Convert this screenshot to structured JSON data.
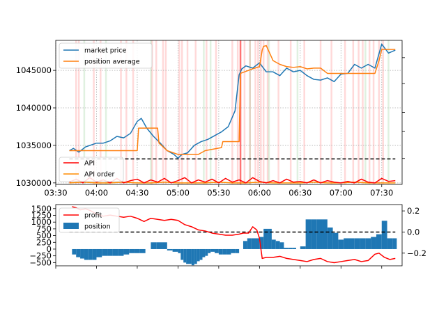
{
  "chart_data": [
    {
      "type": "line",
      "x_unit": "time",
      "xlim": [
        "03:30",
        "07:45"
      ],
      "x_ticks": [
        "03:30",
        "04:00",
        "04:30",
        "05:00",
        "05:30",
        "06:00",
        "06:30",
        "07:00",
        "07:30"
      ],
      "ylim": [
        1029800,
        1049000
      ],
      "y_ticks": [
        1030000,
        1035000,
        1040000,
        1045000
      ],
      "grid": true,
      "legend_upper": {
        "placement": "upper-left",
        "entries": [
          "market price",
          "position average"
        ]
      },
      "legend_lower": {
        "placement": "lower-left",
        "entries": [
          "API",
          "API order"
        ]
      },
      "series": [
        {
          "name": "market price",
          "color": "#1f77b4",
          "x": [
            "03:40",
            "03:43",
            "03:47",
            "03:52",
            "04:00",
            "04:05",
            "04:10",
            "04:15",
            "04:20",
            "04:25",
            "04:30",
            "04:33",
            "04:37",
            "04:42",
            "04:47",
            "04:52",
            "04:57",
            "05:00",
            "05:03",
            "05:07",
            "05:12",
            "05:17",
            "05:22",
            "05:27",
            "05:32",
            "05:37",
            "05:42",
            "05:45",
            "05:47",
            "05:50",
            "05:55",
            "06:00",
            "06:05",
            "06:10",
            "06:15",
            "06:20",
            "06:25",
            "06:30",
            "06:35",
            "06:40",
            "06:45",
            "06:50",
            "06:55",
            "07:00",
            "07:05",
            "07:10",
            "07:15",
            "07:20",
            "07:25",
            "07:30",
            "07:35",
            "07:40"
          ],
          "y": [
            1034300,
            1034600,
            1034100,
            1034800,
            1035300,
            1035300,
            1035600,
            1036200,
            1036000,
            1036600,
            1038200,
            1038600,
            1037300,
            1036200,
            1035300,
            1034300,
            1033800,
            1033300,
            1033800,
            1034000,
            1035000,
            1035500,
            1035800,
            1036300,
            1036800,
            1037500,
            1039600,
            1044400,
            1045200,
            1045600,
            1045300,
            1046000,
            1044800,
            1044800,
            1044300,
            1045300,
            1044800,
            1045000,
            1044300,
            1043800,
            1043700,
            1044000,
            1043500,
            1044500,
            1044600,
            1045800,
            1045300,
            1045800,
            1045300,
            1048500,
            1047300,
            1047700
          ]
        },
        {
          "name": "position average",
          "color": "#ff7f0e",
          "x": [
            "03:40",
            "04:30",
            "04:31",
            "04:45",
            "04:46",
            "04:52",
            "05:00",
            "05:15",
            "05:20",
            "05:32",
            "05:33",
            "05:45",
            "05:46",
            "05:55",
            "06:00",
            "06:02",
            "06:03",
            "06:05",
            "06:10",
            "06:15",
            "06:20",
            "06:25",
            "06:30",
            "06:35",
            "06:40",
            "06:45",
            "06:50",
            "06:55",
            "07:00",
            "07:05",
            "07:10",
            "07:15",
            "07:20",
            "07:25",
            "07:28",
            "07:30",
            "07:40"
          ],
          "y": [
            1034300,
            1034300,
            1037300,
            1037300,
            1035300,
            1034300,
            1033800,
            1033800,
            1034300,
            1034700,
            1035500,
            1035500,
            1044600,
            1045200,
            1045500,
            1047700,
            1048200,
            1048300,
            1046300,
            1045800,
            1045500,
            1045400,
            1045500,
            1045200,
            1045300,
            1045300,
            1044600,
            1044600,
            1044600,
            1044600,
            1044600,
            1044600,
            1044600,
            1044600,
            1046300,
            1047800,
            1047800
          ]
        },
        {
          "name": "API",
          "color": "#ff0000",
          "x": [
            "03:40",
            "03:45",
            "03:50",
            "03:55",
            "04:00",
            "04:05",
            "04:10",
            "04:15",
            "04:20",
            "04:25",
            "04:30",
            "04:35",
            "04:40",
            "04:45",
            "04:50",
            "04:55",
            "05:00",
            "05:05",
            "05:10",
            "05:15",
            "05:20",
            "05:25",
            "05:30",
            "05:35",
            "05:40",
            "05:45",
            "05:50",
            "05:55",
            "06:00",
            "06:05",
            "06:10",
            "06:15",
            "06:20",
            "06:25",
            "06:30",
            "06:35",
            "06:40",
            "06:45",
            "06:50",
            "06:55",
            "07:00",
            "07:05",
            "07:10",
            "07:15",
            "07:20",
            "07:25",
            "07:30",
            "07:35",
            "07:40"
          ],
          "y": [
            1030100,
            1030500,
            1030000,
            1030700,
            1030100,
            1030400,
            1030000,
            1030600,
            1030000,
            1030300,
            1030500,
            1030000,
            1030400,
            1030100,
            1030600,
            1030000,
            1030300,
            1030700,
            1030000,
            1030400,
            1030100,
            1030500,
            1030000,
            1030600,
            1030100,
            1030400,
            1030000,
            1030700,
            1030200,
            1030000,
            1030300,
            1030000,
            1030500,
            1030100,
            1030200,
            1030000,
            1030400,
            1030000,
            1030300,
            1030100,
            1030000,
            1030200,
            1030000,
            1030500,
            1030100,
            1030000,
            1030600,
            1030200,
            1030300
          ]
        },
        {
          "name": "API order",
          "color": "#ff8c00",
          "x": [
            "03:40",
            "03:50",
            "04:00",
            "04:10",
            "04:20",
            "04:30",
            "04:40",
            "04:50",
            "05:00",
            "05:10",
            "05:20",
            "05:30",
            "05:40",
            "05:50",
            "06:00",
            "06:10",
            "06:20",
            "06:30",
            "06:40",
            "06:50",
            "07:00",
            "07:10",
            "07:20",
            "07:30",
            "07:40"
          ],
          "y": [
            1030000,
            1030100,
            1030000,
            1030000,
            1030100,
            1030000,
            1030000,
            1030100,
            1030000,
            1030000,
            1030000,
            1030100,
            1030000,
            1030000,
            1030100,
            1030000,
            1030000,
            1030000,
            1030100,
            1030000,
            1030000,
            1030100,
            1030000,
            1030000,
            1030000
          ]
        }
      ],
      "reference_line_y": 1033200,
      "reference_line_color": "#000000"
    },
    {
      "type": "bar",
      "x_unit": "time",
      "xlim": [
        "03:30",
        "07:45"
      ],
      "ylim_left": [
        -620,
        1650
      ],
      "y_ticks_left": [
        -500,
        -250,
        0,
        250,
        500,
        750,
        1000,
        1250,
        1500
      ],
      "ylim_right": [
        -0.32,
        0.26
      ],
      "y_ticks_right": [
        -0.2,
        0.0,
        0.2
      ],
      "legend": {
        "placement": "upper-left",
        "entries": [
          "profit",
          "position"
        ]
      },
      "series": [
        {
          "name": "position",
          "color": "#1f77b4",
          "axis": "left",
          "x": [
            "03:42",
            "03:45",
            "03:48",
            "03:51",
            "03:54",
            "03:57",
            "04:00",
            "04:04",
            "04:08",
            "04:12",
            "04:16",
            "04:20",
            "04:24",
            "04:28",
            "04:32",
            "04:36",
            "04:40",
            "04:44",
            "04:48",
            "04:52",
            "04:56",
            "05:00",
            "05:02",
            "05:04",
            "05:06",
            "05:08",
            "05:10",
            "05:12",
            "05:14",
            "05:16",
            "05:18",
            "05:20",
            "05:22",
            "05:24",
            "05:27",
            "05:30",
            "05:33",
            "05:36",
            "05:39",
            "05:42",
            "05:45",
            "05:48",
            "05:51",
            "05:54",
            "05:57",
            "06:00",
            "06:03",
            "06:06",
            "06:09",
            "06:12",
            "06:15",
            "06:18",
            "06:21",
            "06:24",
            "06:27",
            "06:30",
            "06:34",
            "06:38",
            "06:42",
            "06:46",
            "06:50",
            "06:54",
            "06:58",
            "07:02",
            "07:06",
            "07:10",
            "07:14",
            "07:18",
            "07:22",
            "07:26",
            "07:30",
            "07:34",
            "07:38"
          ],
          "y": [
            -200,
            -300,
            -350,
            -400,
            -400,
            -400,
            -300,
            -250,
            -250,
            -250,
            -250,
            -200,
            -150,
            -150,
            -150,
            0,
            250,
            250,
            250,
            -50,
            -100,
            -150,
            -400,
            -500,
            -550,
            -550,
            -600,
            -550,
            -450,
            -400,
            -300,
            -250,
            -150,
            -100,
            -150,
            -200,
            -200,
            -200,
            -150,
            -150,
            0,
            300,
            400,
            400,
            400,
            450,
            750,
            750,
            350,
            300,
            250,
            50,
            50,
            50,
            0,
            100,
            1100,
            1100,
            1100,
            1100,
            800,
            600,
            350,
            400,
            400,
            400,
            400,
            400,
            450,
            550,
            1050,
            400,
            400
          ]
        },
        {
          "name": "profit",
          "color": "#ff0000",
          "axis": "right",
          "x": [
            "03:42",
            "03:45",
            "03:48",
            "03:52",
            "03:56",
            "04:00",
            "04:05",
            "04:10",
            "04:15",
            "04:20",
            "04:25",
            "04:30",
            "04:35",
            "04:40",
            "04:45",
            "04:50",
            "04:55",
            "05:00",
            "05:05",
            "05:10",
            "05:15",
            "05:20",
            "05:25",
            "05:30",
            "05:35",
            "05:40",
            "05:45",
            "05:48",
            "05:52",
            "05:55",
            "05:58",
            "06:00",
            "06:02",
            "06:05",
            "06:10",
            "06:15",
            "06:20",
            "06:25",
            "06:30",
            "06:35",
            "06:40",
            "06:45",
            "06:50",
            "06:55",
            "07:00",
            "07:05",
            "07:10",
            "07:15",
            "07:20",
            "07:25",
            "07:28",
            "07:32",
            "07:36",
            "07:40"
          ],
          "y": [
            0.24,
            0.23,
            0.21,
            0.22,
            0.2,
            0.17,
            0.15,
            0.16,
            0.15,
            0.14,
            0.15,
            0.13,
            0.1,
            0.13,
            0.12,
            0.11,
            0.12,
            0.11,
            0.07,
            0.05,
            0.02,
            0.01,
            -0.01,
            -0.02,
            -0.03,
            -0.03,
            -0.02,
            -0.01,
            -0.01,
            0.05,
            0.02,
            -0.06,
            -0.25,
            -0.24,
            -0.24,
            -0.23,
            -0.25,
            -0.26,
            -0.27,
            -0.28,
            -0.26,
            -0.25,
            -0.28,
            -0.29,
            -0.28,
            -0.27,
            -0.26,
            -0.28,
            -0.27,
            -0.21,
            -0.2,
            -0.24,
            -0.26,
            -0.25
          ]
        }
      ],
      "reference_line_y_right": 0.0,
      "reference_line_color": "#000000"
    }
  ],
  "background_spans": {
    "red": [
      "03:45",
      "03:47",
      "03:58",
      "04:03",
      "04:18",
      "04:22",
      "04:27",
      "04:41",
      "04:44",
      "04:49",
      "04:51",
      "05:01",
      "05:03",
      "05:07",
      "05:13",
      "05:21",
      "05:28",
      "05:40",
      "05:44",
      "05:49",
      "05:53",
      "05:57",
      "05:59",
      "06:01",
      "06:03",
      "06:06",
      "06:14",
      "06:23",
      "06:33",
      "06:45",
      "06:53",
      "07:03",
      "07:09",
      "07:13",
      "07:16",
      "07:21",
      "07:24",
      "07:28",
      "07:31"
    ],
    "green": [
      "03:51",
      "04:07",
      "04:40",
      "05:19",
      "05:24",
      "05:53",
      "06:07",
      "06:28",
      "07:18",
      "07:35"
    ],
    "strong_red": [
      "05:46"
    ]
  }
}
